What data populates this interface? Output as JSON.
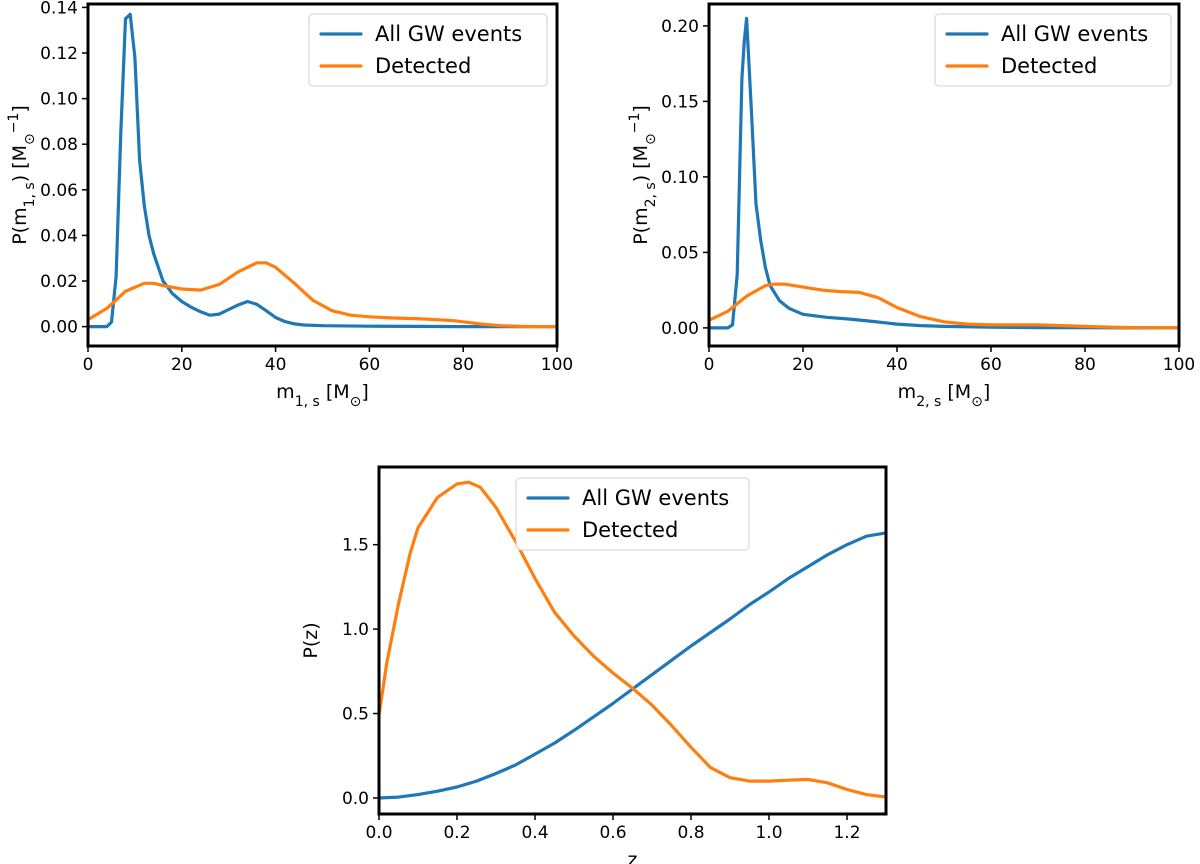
{
  "colors": {
    "all": "#1f77b4",
    "detected": "#ff7f0e"
  },
  "chart_data": [
    {
      "type": "line",
      "id": "m1",
      "xlabel": "m1,s [M⊙]",
      "xlabel_parts": {
        "base": "m",
        "sub": "1, s",
        "unit": " [M",
        "unit_sub": "⊙",
        "unit_close": "]"
      },
      "ylabel": "P(m1,s) [M⊙^-1]",
      "ylabel_parts": {
        "pre": "P(m",
        "sub": "1, s",
        "mid": ") [M",
        "unit_sub": "⊙",
        "sup": "−1",
        "close": "]"
      },
      "xlim": [
        0,
        100
      ],
      "ylim": [
        -0.0085,
        0.1415
      ],
      "xticks": [
        0,
        20,
        40,
        60,
        80,
        100
      ],
      "xtick_labels": [
        "0",
        "20",
        "40",
        "60",
        "80",
        "100"
      ],
      "yticks": [
        0,
        0.02,
        0.04,
        0.06,
        0.08,
        0.1,
        0.12,
        0.14
      ],
      "ytick_labels": [
        "0.00",
        "0.02",
        "0.04",
        "0.06",
        "0.08",
        "0.10",
        "0.12",
        "0.14"
      ],
      "legend": {
        "position": "top-right",
        "entries": [
          "All GW events",
          "Detected"
        ]
      },
      "series": [
        {
          "name": "All GW events",
          "x": [
            0,
            2,
            4,
            5,
            6,
            7,
            8,
            9,
            10,
            11,
            12,
            13,
            14,
            16,
            18,
            20,
            22,
            24,
            26,
            28,
            30,
            32,
            34,
            36,
            38,
            40,
            42,
            44,
            46,
            50,
            60,
            70,
            80,
            90,
            100
          ],
          "y": [
            0.0,
            0.0,
            0.0,
            0.002,
            0.022,
            0.085,
            0.135,
            0.137,
            0.118,
            0.073,
            0.053,
            0.04,
            0.032,
            0.02,
            0.0145,
            0.011,
            0.0085,
            0.0065,
            0.005,
            0.0055,
            0.0075,
            0.0095,
            0.011,
            0.0098,
            0.007,
            0.004,
            0.0022,
            0.0012,
            0.0007,
            0.0004,
            0.0002,
            0.0001,
            0.0,
            0.0,
            0.0
          ]
        },
        {
          "name": "Detected",
          "x": [
            0,
            4,
            8,
            12,
            14,
            16,
            20,
            24,
            28,
            32,
            36,
            38,
            40,
            44,
            48,
            52,
            56,
            60,
            65,
            70,
            75,
            78,
            80,
            84,
            88,
            92,
            96,
            100
          ],
          "y": [
            0.003,
            0.008,
            0.0155,
            0.019,
            0.019,
            0.018,
            0.0165,
            0.016,
            0.0185,
            0.024,
            0.028,
            0.028,
            0.026,
            0.019,
            0.0115,
            0.007,
            0.005,
            0.0043,
            0.0038,
            0.0035,
            0.003,
            0.0026,
            0.0021,
            0.0011,
            0.0004,
            0.0001,
            0.0,
            0.0
          ]
        }
      ]
    },
    {
      "type": "line",
      "id": "m2",
      "xlabel": "m2,s [M⊙]",
      "xlabel_parts": {
        "base": "m",
        "sub": "2, s",
        "unit": " [M",
        "unit_sub": "⊙",
        "unit_close": "]"
      },
      "ylabel": "P(m2,s) [M⊙^-1]",
      "ylabel_parts": {
        "pre": "P(m",
        "sub": "2, s",
        "mid": ") [M",
        "unit_sub": "⊙",
        "sup": "−1",
        "close": "]"
      },
      "xlim": [
        0,
        100
      ],
      "ylim": [
        -0.012,
        0.2145
      ],
      "xticks": [
        0,
        20,
        40,
        60,
        80,
        100
      ],
      "xtick_labels": [
        "0",
        "20",
        "40",
        "60",
        "80",
        "100"
      ],
      "yticks": [
        0,
        0.05,
        0.1,
        0.15,
        0.2
      ],
      "ytick_labels": [
        "0.00",
        "0.05",
        "0.10",
        "0.15",
        "0.20"
      ],
      "legend": {
        "position": "top-right",
        "entries": [
          "All GW events",
          "Detected"
        ]
      },
      "series": [
        {
          "name": "All GW events",
          "x": [
            0,
            2,
            4,
            5,
            6,
            7,
            7.5,
            8,
            9,
            10,
            11,
            12,
            13,
            15,
            17,
            20,
            25,
            30,
            35,
            40,
            45,
            50,
            60,
            70,
            80,
            90,
            100
          ],
          "y": [
            0.0,
            0.0,
            0.0,
            0.002,
            0.035,
            0.165,
            0.19,
            0.205,
            0.145,
            0.082,
            0.058,
            0.04,
            0.028,
            0.018,
            0.013,
            0.009,
            0.007,
            0.0058,
            0.0042,
            0.0025,
            0.0015,
            0.001,
            0.0005,
            0.0002,
            0.0001,
            0.0,
            0.0
          ]
        },
        {
          "name": "Detected",
          "x": [
            0,
            4,
            8,
            12,
            14,
            16,
            20,
            24,
            28,
            32,
            36,
            40,
            45,
            50,
            55,
            60,
            65,
            70,
            75,
            80,
            85,
            90,
            100
          ],
          "y": [
            0.005,
            0.011,
            0.021,
            0.028,
            0.029,
            0.029,
            0.027,
            0.025,
            0.024,
            0.0235,
            0.02,
            0.0135,
            0.0075,
            0.004,
            0.0025,
            0.002,
            0.002,
            0.002,
            0.0015,
            0.001,
            0.0005,
            0.0002,
            0.0
          ]
        }
      ]
    },
    {
      "type": "line",
      "id": "z",
      "xlabel": "z",
      "ylabel": "P(z)",
      "xlim": [
        0,
        1.3
      ],
      "ylim": [
        -0.095,
        1.96
      ],
      "xticks": [
        0,
        0.2,
        0.4,
        0.6,
        0.8,
        1.0,
        1.2
      ],
      "xtick_labels": [
        "0.0",
        "0.2",
        "0.4",
        "0.6",
        "0.8",
        "1.0",
        "1.2"
      ],
      "yticks": [
        0,
        0.5,
        1.0,
        1.5
      ],
      "ytick_labels": [
        "0.0",
        "0.5",
        "1.0",
        "1.5"
      ],
      "legend": {
        "position": "top-center",
        "entries": [
          "All GW events",
          "Detected"
        ]
      },
      "series": [
        {
          "name": "All GW events",
          "x": [
            0.0,
            0.05,
            0.1,
            0.15,
            0.2,
            0.25,
            0.3,
            0.35,
            0.4,
            0.45,
            0.5,
            0.55,
            0.6,
            0.65,
            0.7,
            0.75,
            0.8,
            0.85,
            0.9,
            0.95,
            1.0,
            1.05,
            1.1,
            1.15,
            1.2,
            1.25,
            1.3
          ],
          "y": [
            0.0,
            0.005,
            0.02,
            0.04,
            0.065,
            0.1,
            0.145,
            0.195,
            0.26,
            0.325,
            0.4,
            0.48,
            0.56,
            0.645,
            0.73,
            0.815,
            0.9,
            0.98,
            1.06,
            1.145,
            1.22,
            1.3,
            1.37,
            1.44,
            1.5,
            1.55,
            1.57
          ]
        },
        {
          "name": "Detected",
          "x": [
            0.0,
            0.02,
            0.05,
            0.08,
            0.1,
            0.15,
            0.2,
            0.23,
            0.26,
            0.3,
            0.35,
            0.4,
            0.45,
            0.5,
            0.55,
            0.6,
            0.65,
            0.7,
            0.75,
            0.8,
            0.85,
            0.9,
            0.95,
            1.0,
            1.05,
            1.1,
            1.15,
            1.2,
            1.25,
            1.3
          ],
          "y": [
            0.49,
            0.8,
            1.15,
            1.45,
            1.6,
            1.78,
            1.86,
            1.87,
            1.84,
            1.72,
            1.52,
            1.3,
            1.1,
            0.96,
            0.84,
            0.74,
            0.65,
            0.55,
            0.43,
            0.3,
            0.18,
            0.12,
            0.1,
            0.1,
            0.105,
            0.11,
            0.09,
            0.05,
            0.02,
            0.005
          ]
        }
      ]
    }
  ]
}
